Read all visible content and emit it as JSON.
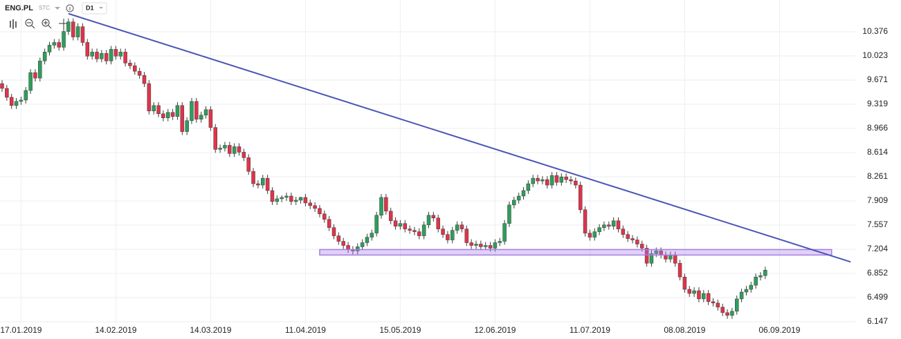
{
  "header": {
    "symbol": "ENG.PL",
    "market": "STC",
    "interval": "D1"
  },
  "chart_data": {
    "type": "candlestick",
    "categories": [
      null,
      null,
      null,
      null,
      "17.01.2019",
      null,
      null,
      null,
      null,
      null,
      null,
      null,
      null,
      null,
      null,
      null,
      null,
      null,
      null,
      null,
      null,
      null,
      null,
      null,
      "14.02.2019",
      null,
      null,
      null,
      null,
      null,
      null,
      null,
      null,
      null,
      null,
      null,
      null,
      null,
      null,
      null,
      null,
      null,
      null,
      null,
      "14.03.2019",
      null,
      null,
      null,
      null,
      null,
      null,
      null,
      null,
      null,
      null,
      null,
      null,
      null,
      null,
      null,
      null,
      null,
      null,
      null,
      "11.04.2019",
      null,
      null,
      null,
      null,
      null,
      null,
      null,
      null,
      null,
      null,
      null,
      null,
      null,
      null,
      null,
      null,
      null,
      null,
      null,
      "15.05.2019",
      null,
      null,
      null,
      null,
      null,
      null,
      null,
      null,
      null,
      null,
      null,
      null,
      null,
      null,
      null,
      null,
      null,
      null,
      null,
      "12.06.2019",
      null,
      null,
      null,
      null,
      null,
      null,
      null,
      null,
      null,
      null,
      null,
      null,
      null,
      null,
      null,
      null,
      null,
      null,
      null,
      "11.07.2019",
      null,
      null,
      null,
      null,
      null,
      null,
      null,
      null,
      null,
      null,
      null,
      null,
      null,
      null,
      null,
      null,
      null,
      null,
      null,
      "08.08.2019",
      null,
      null,
      null,
      null,
      null,
      null,
      null,
      null,
      null,
      null,
      null,
      null,
      null,
      null,
      null,
      null,
      null,
      null,
      null,
      "06.09.2019",
      null,
      null,
      null,
      null,
      null,
      null,
      null,
      null,
      null,
      null,
      null,
      null,
      null,
      null,
      null
    ],
    "open": [
      9.62,
      9.55,
      9.42,
      9.3,
      9.36,
      9.38,
      9.52,
      9.78,
      9.7,
      9.95,
      10.08,
      10.18,
      10.22,
      10.15,
      10.38,
      10.52,
      10.3,
      10.45,
      10.22,
      10.02,
      10.08,
      9.98,
      10.06,
      9.95,
      10.12,
      10.02,
      10.08,
      9.92,
      9.88,
      9.8,
      9.74,
      9.62,
      9.22,
      9.3,
      9.18,
      9.12,
      9.2,
      9.14,
      9.3,
      8.92,
      9.08,
      9.36,
      9.1,
      9.16,
      9.24,
      8.98,
      8.66,
      8.68,
      8.72,
      8.6,
      8.7,
      8.62,
      8.54,
      8.34,
      8.16,
      8.14,
      8.24,
      8.06,
      7.9,
      7.94,
      7.96,
      7.98,
      7.9,
      7.92,
      7.96,
      7.88,
      7.84,
      7.8,
      7.72,
      7.64,
      7.52,
      7.4,
      7.32,
      7.26,
      7.2,
      7.18,
      7.24,
      7.3,
      7.38,
      7.44,
      7.7,
      7.96,
      7.76,
      7.62,
      7.54,
      7.58,
      7.5,
      7.48,
      7.46,
      7.4,
      7.56,
      7.7,
      7.66,
      7.5,
      7.42,
      7.34,
      7.48,
      7.56,
      7.5,
      7.3,
      7.26,
      7.28,
      7.24,
      7.26,
      7.22,
      7.3,
      7.32,
      7.58,
      7.85,
      7.92,
      7.98,
      8.06,
      8.16,
      8.24,
      8.2,
      8.22,
      8.14,
      8.28,
      8.18,
      8.26,
      8.22,
      8.2,
      8.14,
      7.78,
      7.44,
      7.38,
      7.46,
      7.52,
      7.56,
      7.54,
      7.62,
      7.5,
      7.42,
      7.36,
      7.34,
      7.28,
      7.22,
      7.0,
      7.14,
      7.18,
      7.12,
      7.06,
      7.12,
      7.0,
      6.8,
      6.62,
      6.56,
      6.6,
      6.48,
      6.56,
      6.44,
      6.42,
      6.36,
      6.28,
      6.24,
      6.3,
      6.48,
      6.58,
      6.62,
      6.68,
      6.8,
      6.82,
      null,
      null,
      null,
      null,
      null,
      null,
      null,
      null,
      null,
      null,
      null,
      null,
      null,
      null,
      null,
      null,
      null,
      null
    ],
    "high": [
      9.67,
      9.6,
      9.47,
      9.41,
      9.43,
      9.57,
      9.83,
      9.83,
      10.0,
      10.13,
      10.23,
      10.27,
      10.27,
      10.43,
      10.57,
      10.57,
      10.5,
      10.5,
      10.27,
      10.13,
      10.13,
      10.11,
      10.11,
      10.17,
      10.17,
      10.13,
      10.13,
      9.97,
      9.93,
      9.85,
      9.79,
      9.67,
      9.35,
      9.35,
      9.23,
      9.25,
      9.25,
      9.35,
      9.35,
      9.13,
      9.41,
      9.41,
      9.21,
      9.29,
      9.29,
      9.03,
      8.73,
      8.77,
      8.77,
      8.75,
      8.75,
      8.67,
      8.59,
      8.39,
      8.21,
      8.29,
      8.29,
      8.11,
      7.99,
      7.99,
      8.03,
      8.03,
      7.97,
      7.97,
      8.01,
      7.93,
      7.89,
      7.85,
      7.77,
      7.69,
      7.57,
      7.45,
      7.37,
      7.31,
      7.25,
      7.29,
      7.35,
      7.43,
      7.49,
      7.75,
      8.01,
      8.01,
      7.81,
      7.67,
      7.63,
      7.63,
      7.55,
      7.53,
      7.51,
      7.61,
      7.75,
      7.75,
      7.71,
      7.55,
      7.47,
      7.53,
      7.61,
      7.61,
      7.55,
      7.35,
      7.33,
      7.33,
      7.31,
      7.31,
      7.35,
      7.37,
      7.63,
      7.9,
      7.97,
      8.03,
      8.11,
      8.21,
      8.29,
      8.29,
      8.27,
      8.27,
      8.33,
      8.33,
      8.31,
      8.31,
      8.27,
      8.25,
      8.19,
      7.83,
      7.49,
      7.51,
      7.57,
      7.61,
      7.61,
      7.67,
      7.67,
      7.55,
      7.47,
      7.41,
      7.39,
      7.33,
      7.27,
      7.19,
      7.23,
      7.23,
      7.17,
      7.17,
      7.17,
      7.05,
      6.85,
      6.67,
      6.65,
      6.65,
      6.61,
      6.61,
      6.49,
      6.47,
      6.41,
      6.33,
      6.35,
      6.53,
      6.63,
      6.67,
      6.73,
      6.85,
      6.87,
      6.95,
      null,
      null,
      null,
      null,
      null,
      null,
      null,
      null,
      null,
      null,
      null,
      null,
      null,
      null,
      null,
      null,
      null,
      null
    ],
    "low": [
      9.5,
      9.37,
      9.25,
      9.25,
      9.31,
      9.33,
      9.47,
      9.65,
      9.65,
      9.9,
      10.03,
      10.13,
      10.1,
      10.1,
      10.33,
      10.25,
      10.25,
      10.17,
      9.97,
      9.97,
      9.93,
      9.93,
      9.9,
      9.9,
      9.97,
      9.97,
      9.87,
      9.83,
      9.75,
      9.69,
      9.57,
      9.17,
      9.17,
      9.13,
      9.07,
      9.07,
      9.09,
      9.09,
      8.87,
      8.87,
      9.03,
      9.05,
      9.05,
      9.11,
      8.93,
      8.61,
      8.61,
      8.63,
      8.55,
      8.55,
      8.57,
      8.49,
      8.29,
      8.11,
      8.09,
      8.09,
      8.01,
      7.85,
      7.85,
      7.89,
      7.91,
      7.85,
      7.85,
      7.87,
      7.83,
      7.79,
      7.75,
      7.67,
      7.59,
      7.47,
      7.35,
      7.27,
      7.21,
      7.15,
      7.13,
      7.13,
      7.19,
      7.25,
      7.33,
      7.39,
      7.65,
      7.71,
      7.57,
      7.49,
      7.49,
      7.45,
      7.43,
      7.41,
      7.35,
      7.35,
      7.51,
      7.61,
      7.45,
      7.37,
      7.29,
      7.29,
      7.43,
      7.45,
      7.25,
      7.21,
      7.21,
      7.19,
      7.19,
      7.17,
      7.17,
      7.25,
      7.27,
      7.53,
      7.8,
      7.87,
      7.93,
      8.01,
      8.11,
      8.15,
      8.15,
      8.09,
      8.09,
      8.13,
      8.13,
      8.17,
      8.15,
      8.09,
      7.73,
      7.39,
      7.33,
      7.33,
      7.41,
      7.47,
      7.49,
      7.49,
      7.45,
      7.37,
      7.31,
      7.29,
      7.23,
      7.17,
      6.95,
      6.95,
      7.09,
      7.07,
      7.01,
      7.01,
      6.95,
      6.75,
      6.57,
      6.51,
      6.51,
      6.43,
      6.43,
      6.39,
      6.37,
      6.31,
      6.23,
      6.19,
      6.19,
      6.25,
      6.43,
      6.53,
      6.57,
      6.63,
      6.75,
      6.77,
      null,
      null,
      null,
      null,
      null,
      null,
      null,
      null,
      null,
      null,
      null,
      null,
      null,
      null,
      null,
      null,
      null,
      null
    ],
    "close": [
      9.55,
      9.42,
      9.3,
      9.36,
      9.38,
      9.52,
      9.78,
      9.7,
      9.95,
      10.08,
      10.18,
      10.22,
      10.15,
      10.38,
      10.52,
      10.3,
      10.45,
      10.22,
      10.02,
      10.08,
      9.98,
      10.06,
      9.95,
      10.12,
      10.02,
      10.08,
      9.92,
      9.88,
      9.8,
      9.74,
      9.62,
      9.22,
      9.3,
      9.18,
      9.12,
      9.2,
      9.14,
      9.3,
      8.92,
      9.08,
      9.36,
      9.1,
      9.16,
      9.24,
      8.98,
      8.66,
      8.68,
      8.72,
      8.6,
      8.7,
      8.62,
      8.54,
      8.34,
      8.16,
      8.14,
      8.24,
      8.06,
      7.9,
      7.94,
      7.96,
      7.98,
      7.9,
      7.92,
      7.96,
      7.88,
      7.84,
      7.8,
      7.72,
      7.64,
      7.52,
      7.4,
      7.32,
      7.26,
      7.2,
      7.18,
      7.24,
      7.3,
      7.38,
      7.44,
      7.7,
      7.96,
      7.76,
      7.62,
      7.54,
      7.58,
      7.5,
      7.48,
      7.46,
      7.4,
      7.56,
      7.7,
      7.66,
      7.5,
      7.42,
      7.34,
      7.48,
      7.56,
      7.5,
      7.3,
      7.26,
      7.28,
      7.24,
      7.26,
      7.22,
      7.3,
      7.32,
      7.58,
      7.85,
      7.92,
      7.98,
      8.06,
      8.16,
      8.24,
      8.2,
      8.22,
      8.14,
      8.28,
      8.18,
      8.26,
      8.22,
      8.2,
      8.14,
      7.78,
      7.44,
      7.38,
      7.46,
      7.52,
      7.56,
      7.54,
      7.62,
      7.5,
      7.42,
      7.36,
      7.34,
      7.28,
      7.22,
      7.0,
      7.14,
      7.18,
      7.12,
      7.06,
      7.12,
      7.0,
      6.8,
      6.62,
      6.56,
      6.6,
      6.48,
      6.56,
      6.44,
      6.42,
      6.36,
      6.28,
      6.24,
      6.3,
      6.48,
      6.58,
      6.62,
      6.68,
      6.8,
      6.82,
      6.9,
      null,
      null,
      null,
      null,
      null,
      null,
      null,
      null,
      null,
      null,
      null,
      null,
      null,
      null,
      null,
      null,
      null,
      null
    ],
    "up_color": "#2e9e5b",
    "down_color": "#e0334a",
    "trendline": {
      "x": [
        14,
        179
      ],
      "y": [
        10.64,
        7.02
      ],
      "color": "#4a55b5"
    },
    "zone": {
      "x": [
        67,
        175
      ],
      "y": [
        7.12,
        7.2
      ],
      "color": "#a57be6"
    },
    "ylim": [
      6.107,
      10.839
    ],
    "yticks": [
      6.147,
      6.499,
      6.852,
      7.204,
      7.557,
      7.909,
      8.261,
      8.614,
      8.966,
      9.319,
      9.671,
      10.023,
      10.376
    ],
    "grid": true
  }
}
